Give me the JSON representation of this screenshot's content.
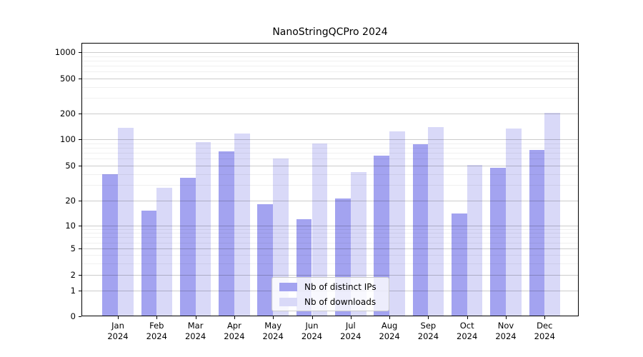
{
  "chart_data": {
    "type": "bar",
    "title": "NanoStringQCPro 2024",
    "categories": [
      "Jan 2024",
      "Feb 2024",
      "Mar 2024",
      "Apr 2024",
      "May 2024",
      "Jun 2024",
      "Jul 2024",
      "Aug 2024",
      "Sep 2024",
      "Oct 2024",
      "Nov 2024",
      "Dec 2024"
    ],
    "series": [
      {
        "name": "Nb of distinct IPs",
        "color": "#a3a3f0",
        "values": [
          40,
          15,
          36,
          73,
          18,
          12,
          21,
          65,
          88,
          14,
          47,
          76
        ]
      },
      {
        "name": "Nb of downloads",
        "color": "#d9d9f8",
        "values": [
          136,
          28,
          93,
          117,
          60,
          90,
          42,
          125,
          138,
          51,
          133,
          202
        ]
      }
    ],
    "xlabel": "",
    "ylabel": "",
    "y_axis": {
      "scale": "symlog",
      "ticks": [
        0,
        1,
        2,
        5,
        10,
        20,
        50,
        100,
        200,
        500,
        1000
      ],
      "minor_ticks": [
        3,
        4,
        6,
        7,
        8,
        9,
        30,
        40,
        60,
        70,
        80,
        90,
        300,
        400,
        600,
        700,
        800,
        900
      ],
      "ylim": [
        0,
        1280
      ]
    },
    "grid": {
      "horizontal_major": true,
      "horizontal_minor": true,
      "drawn_over_bars": true
    },
    "legend_position": "lower-center"
  },
  "colors": {
    "background": "#ffffff",
    "bar_distinct_ips": "#a3a3f0",
    "bar_downloads": "#d9d9f8",
    "grid_major": "#cccccc",
    "grid_minor": "#f0f0f0",
    "axis_spine": "#000000",
    "text": "#000000",
    "legend_background": "rgba(255,255,255,0.8)",
    "legend_border": "#cccccc"
  }
}
